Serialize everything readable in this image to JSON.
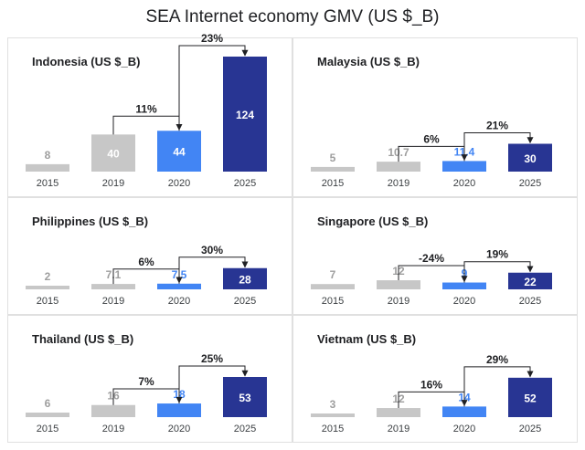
{
  "title": "SEA Internet economy GMV (US $_B)",
  "colors": {
    "y2015": "#c7c7c7",
    "y2019": "#c7c7c7",
    "y2020": "#4285f4",
    "y2025": "#283593",
    "grid_border": "#e0e0e0",
    "label_gray": "#9e9e9e",
    "label_white": "#ffffff"
  },
  "chart_data": [
    {
      "type": "bar",
      "title": "Indonesia (US $_B)",
      "categories": [
        "2015",
        "2019",
        "2020",
        "2025"
      ],
      "values": [
        8,
        40,
        44,
        124
      ],
      "value_labels": [
        "8",
        "40",
        "44",
        "124"
      ],
      "growth_labels": [
        "11%",
        "23%"
      ],
      "ylim": [
        0,
        124
      ]
    },
    {
      "type": "bar",
      "title": "Malaysia (US $_B)",
      "categories": [
        "2015",
        "2019",
        "2020",
        "2025"
      ],
      "values": [
        5,
        10.7,
        11.4,
        30
      ],
      "value_labels": [
        "5",
        "10.7",
        "11.4",
        "30"
      ],
      "growth_labels": [
        "6%",
        "21%"
      ],
      "ylim": [
        0,
        124
      ]
    },
    {
      "type": "bar",
      "title": "Philippines (US $_B)",
      "categories": [
        "2015",
        "2019",
        "2020",
        "2025"
      ],
      "values": [
        2,
        7.1,
        7.5,
        28
      ],
      "value_labels": [
        "2",
        "7.1",
        "7.5",
        "28"
      ],
      "growth_labels": [
        "6%",
        "30%"
      ],
      "ylim": [
        0,
        124
      ]
    },
    {
      "type": "bar",
      "title": "Singapore (US $_B)",
      "categories": [
        "2015",
        "2019",
        "2020",
        "2025"
      ],
      "values": [
        7,
        12,
        9,
        22
      ],
      "value_labels": [
        "7",
        "12",
        "9",
        "22"
      ],
      "growth_labels": [
        "-24%",
        "19%"
      ],
      "ylim": [
        0,
        124
      ]
    },
    {
      "type": "bar",
      "title": "Thailand (US $_B)",
      "categories": [
        "2015",
        "2019",
        "2020",
        "2025"
      ],
      "values": [
        6,
        16,
        18,
        53
      ],
      "value_labels": [
        "6",
        "16",
        "18",
        "53"
      ],
      "growth_labels": [
        "7%",
        "25%"
      ],
      "ylim": [
        0,
        124
      ]
    },
    {
      "type": "bar",
      "title": "Vietnam (US $_B)",
      "categories": [
        "2015",
        "2019",
        "2020",
        "2025"
      ],
      "values": [
        3,
        12,
        14,
        52
      ],
      "value_labels": [
        "3",
        "12",
        "14",
        "52"
      ],
      "growth_labels": [
        "16%",
        "29%"
      ],
      "ylim": [
        0,
        124
      ]
    }
  ]
}
